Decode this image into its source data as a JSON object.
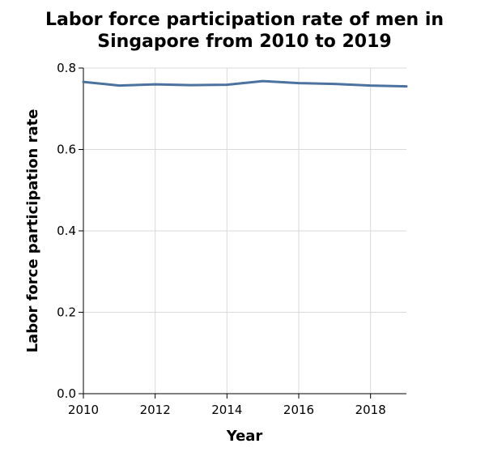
{
  "chart_data": {
    "type": "line",
    "title_line1": "Labor force participation rate of men in",
    "title_line2": "Singapore from 2010 to 2019",
    "xlabel": "Year",
    "ylabel": "Labor force participation rate",
    "x": [
      2010,
      2011,
      2012,
      2013,
      2014,
      2015,
      2016,
      2017,
      2018,
      2019
    ],
    "series": [
      {
        "values": [
          0.766,
          0.757,
          0.76,
          0.758,
          0.759,
          0.768,
          0.763,
          0.761,
          0.757,
          0.755
        ]
      }
    ],
    "xlim": [
      2010,
      2019
    ],
    "ylim": [
      0,
      0.8
    ],
    "x_ticks": [
      "2010",
      "2012",
      "2014",
      "2016",
      "2018"
    ],
    "y_ticks": [
      "0.0",
      "0.2",
      "0.4",
      "0.6",
      "0.8"
    ],
    "grid": true,
    "line_color": "#4c72a0",
    "grid_color": "#d9d9d9"
  }
}
